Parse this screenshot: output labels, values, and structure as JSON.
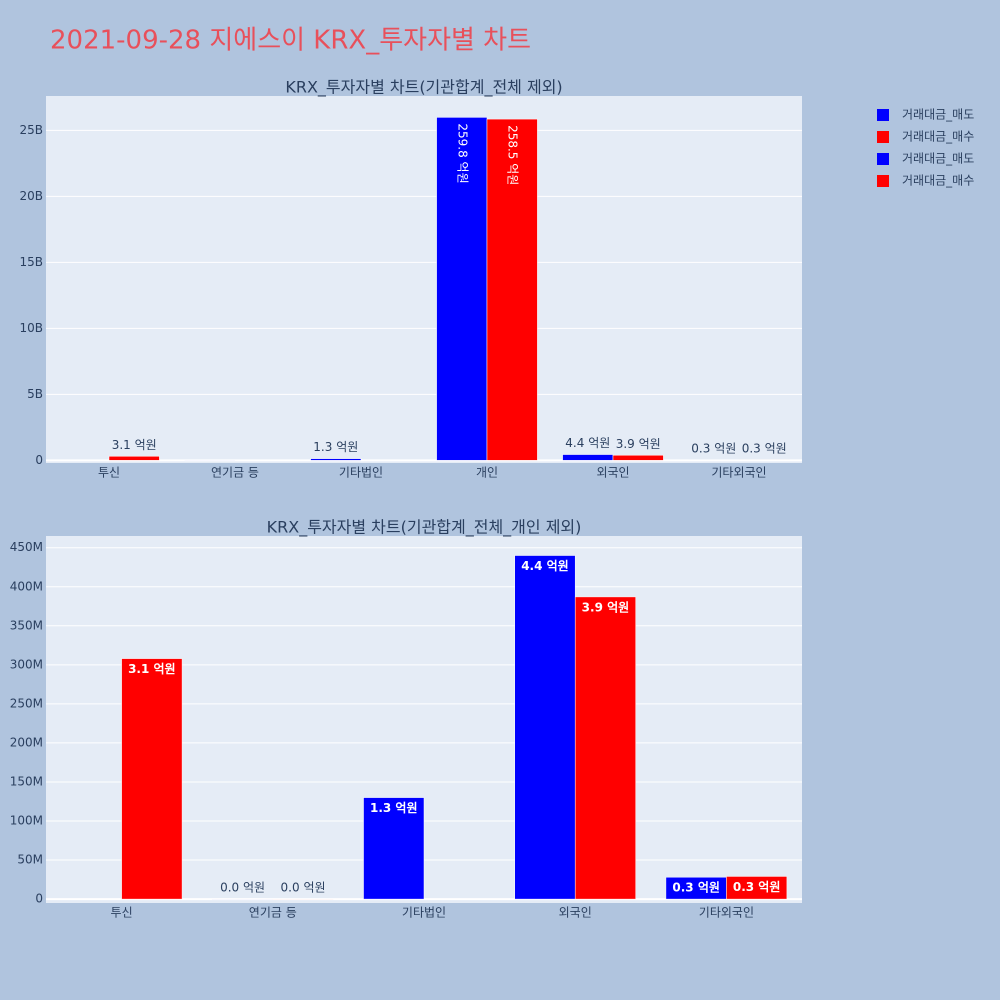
{
  "page_title": "2021-09-28 지에스이 KRX_투자자별 차트",
  "chart_data": [
    {
      "type": "bar",
      "title": "KRX_투자자별 차트(기관합계_전체 제외)",
      "categories": [
        "투신",
        "연기금 등",
        "기타법인",
        "개인",
        "외국인",
        "기타외국인"
      ],
      "series": [
        {
          "name": "거래대금_매도",
          "color": "#0000ff",
          "values": [
            null,
            0,
            130000000,
            25980000000,
            440000000,
            28000000
          ],
          "value_labels": [
            null,
            null,
            "1.3 억원",
            "259.8 억원",
            "4.4 억원",
            "0.3 억원"
          ]
        },
        {
          "name": "거래대금_매수",
          "color": "#ff0000",
          "values": [
            308000000,
            null,
            null,
            25850000000,
            387000000,
            29000000
          ],
          "value_labels": [
            "3.1 억원",
            null,
            null,
            "258.5 억원",
            "3.9 억원",
            "0.3 억원"
          ]
        }
      ],
      "ylim": [
        -200000000,
        27600000000
      ],
      "yticks": [
        0,
        {
          "value": 5000000000,
          "label": "5B"
        },
        {
          "value": 10000000000,
          "label": "10B"
        },
        {
          "value": 15000000000,
          "label": "15B"
        },
        {
          "value": 20000000000,
          "label": "20B"
        },
        {
          "value": 25000000000,
          "label": "25B"
        }
      ],
      "grid": true
    },
    {
      "type": "bar",
      "title": "KRX_투자자별 차트(기관합계_전체_개인 제외)",
      "categories": [
        "투신",
        "연기금 등",
        "기타법인",
        "외국인",
        "기타외국인"
      ],
      "series": [
        {
          "name": "거래대금_매도",
          "color": "#0000ff",
          "values": [
            null,
            0,
            130000000,
            440000000,
            28000000
          ],
          "value_labels": [
            null,
            "0.0 억원",
            "1.3 억원",
            "4.4 억원",
            "0.3 억원"
          ]
        },
        {
          "name": "거래대금_매수",
          "color": "#ff0000",
          "values": [
            308000000,
            0,
            null,
            387000000,
            29000000
          ],
          "value_labels": [
            "3.1 억원",
            "0.0 억원",
            null,
            "3.9 억원",
            "0.3 억원"
          ]
        }
      ],
      "ylim": [
        -5000000,
        465000000
      ],
      "yticks": [
        0,
        {
          "value": 50000000,
          "label": "50M"
        },
        {
          "value": 100000000,
          "label": "100M"
        },
        {
          "value": 150000000,
          "label": "150M"
        },
        {
          "value": 200000000,
          "label": "200M"
        },
        {
          "value": 250000000,
          "label": "250M"
        },
        {
          "value": 300000000,
          "label": "300M"
        },
        {
          "value": 350000000,
          "label": "350M"
        },
        {
          "value": 400000000,
          "label": "400M"
        },
        {
          "value": 450000000,
          "label": "450M"
        }
      ],
      "grid": true
    }
  ]
}
